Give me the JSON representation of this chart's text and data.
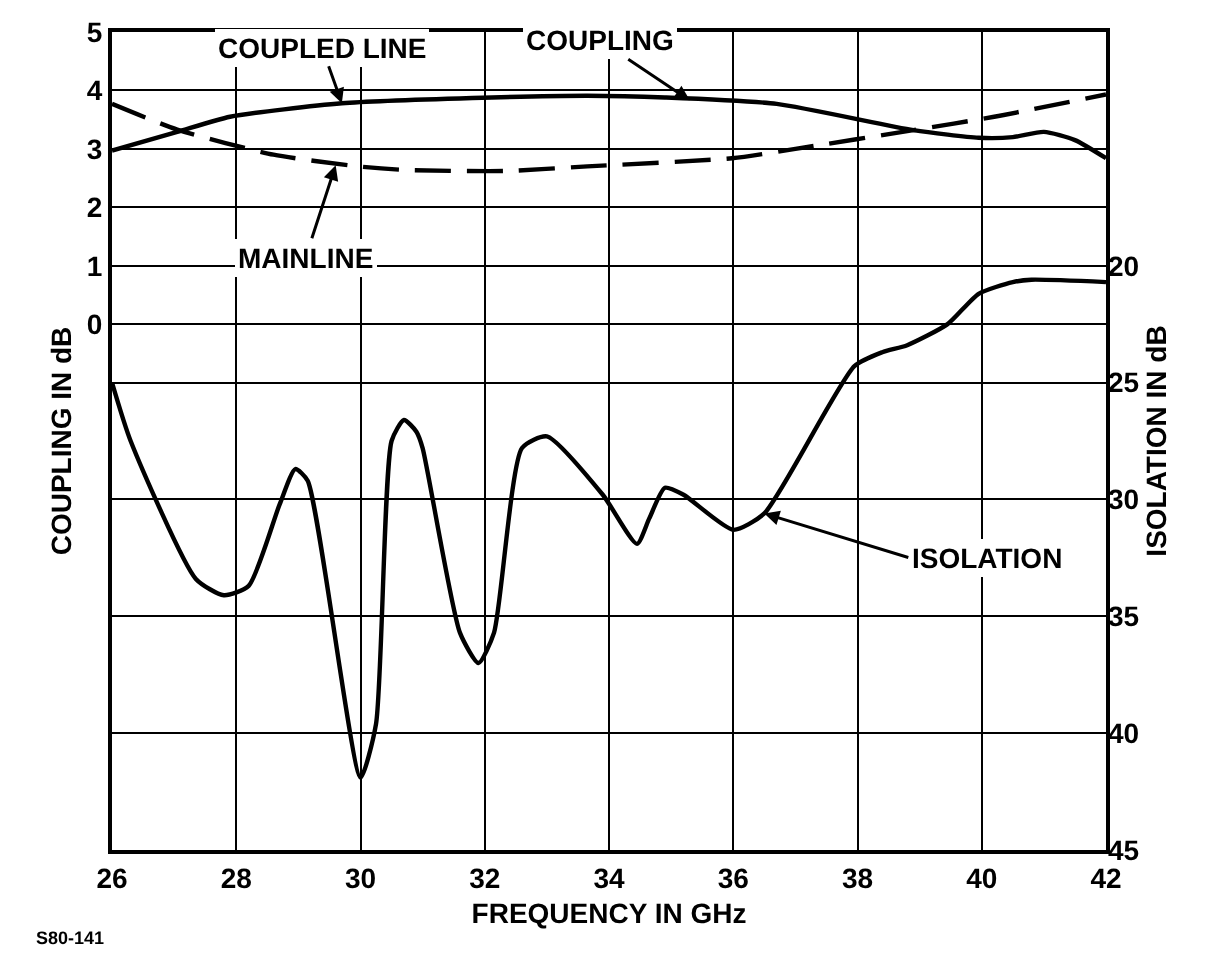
{
  "chart_data": {
    "type": "line",
    "xlabel": "FREQUENCY IN GHz",
    "ylabel": "COUPLING IN dB",
    "y2label": "ISOLATION IN dB",
    "xlim": [
      26,
      42
    ],
    "xticks": [
      26,
      28,
      30,
      32,
      34,
      36,
      38,
      40,
      42
    ],
    "ylim": [
      -9,
      5
    ],
    "yticks": [
      0,
      1,
      2,
      3,
      4,
      5
    ],
    "y2lim": [
      45,
      10
    ],
    "y2ticks": [
      20,
      25,
      30,
      35,
      40,
      45
    ],
    "grid": true,
    "marker": "none",
    "series": [
      {
        "color": "#000000",
        "line_style": "solid",
        "x": [
          26,
          27.05,
          27.9,
          29.7,
          31.8,
          33.65,
          34.9,
          36.7,
          38.9,
          39.95,
          40.5,
          41,
          41.5,
          42
        ],
        "values": [
          2.97,
          3.29,
          3.55,
          3.78,
          3.87,
          3.91,
          3.88,
          3.77,
          3.32,
          3.19,
          3.2,
          3.29,
          3.15,
          2.84
        ]
      },
      {
        "color": "#000000",
        "line_style": "dashed",
        "x": [
          26,
          27.05,
          28.6,
          29.97,
          30.7,
          32.3,
          33.65,
          35.98,
          37,
          38.9,
          40.2,
          42
        ],
        "values": [
          3.77,
          3.33,
          2.9,
          2.7,
          2.64,
          2.62,
          2.7,
          2.84,
          3.0,
          3.32,
          3.55,
          3.93
        ]
      },
      {
        "color": "#000000",
        "line_style": "solid",
        "axis": "y2",
        "x": [
          26,
          26.3,
          27.35,
          27.8,
          28.2,
          28.7,
          28.95,
          29.15,
          30,
          30.25,
          30.5,
          30.7,
          30.9,
          31,
          31.6,
          31.9,
          32.15,
          32.6,
          33,
          33.9,
          34.45,
          34.65,
          34.9,
          35.2,
          36,
          36.5,
          37.95,
          38.4,
          38.8,
          39.45,
          39.95,
          40.5,
          40.8,
          42
        ],
        "values": [
          25,
          27.5,
          33.4,
          34.1,
          33.7,
          30.2,
          28.7,
          29.2,
          41.9,
          39.6,
          27.5,
          26.6,
          27.1,
          27.8,
          35.7,
          37,
          35.7,
          27.8,
          27.3,
          29.8,
          31.9,
          30.8,
          29.5,
          29.8,
          31.3,
          30.6,
          24.3,
          23.7,
          23.4,
          22.5,
          21.2,
          20.7,
          20.6,
          20.7
        ]
      }
    ],
    "annotations": [
      {
        "text": "COUPLED LINE",
        "x": 29.7,
        "y": 3.78
      },
      {
        "text": "MAINLINE",
        "x": 29.6,
        "y": 2.72
      },
      {
        "text": "COUPLING",
        "x": 35.3,
        "y": 3.83
      },
      {
        "text": "ISOLATION",
        "x": 36.5,
        "y": -3.24
      },
      "S80-141"
    ]
  }
}
